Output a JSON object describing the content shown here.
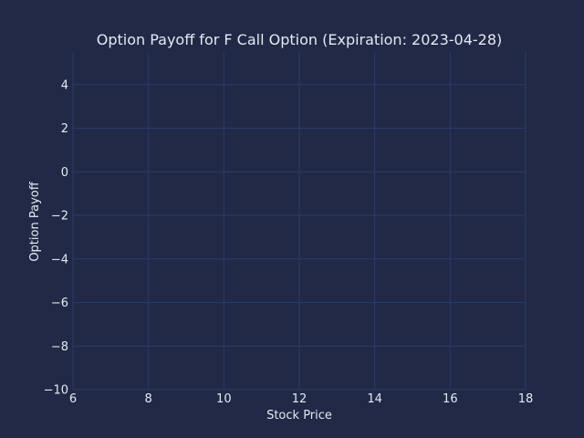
{
  "chart_data": {
    "type": "line",
    "title": "Option Payoff for F Call Option (Expiration: 2023-04-28)",
    "xlabel": "Stock Price",
    "ylabel": "Option Payoff",
    "xlim": [
      6,
      18
    ],
    "ylim": [
      -10,
      5.5
    ],
    "xticks": [
      6,
      8,
      10,
      12,
      14,
      16,
      18
    ],
    "yticks": [
      -10,
      -8,
      -6,
      -4,
      -2,
      0,
      2,
      4
    ],
    "xtick_labels": [
      "6",
      "8",
      "10",
      "12",
      "14",
      "16",
      "18"
    ],
    "ytick_labels": [
      "−10",
      "−8",
      "−6",
      "−4",
      "−2",
      "0",
      "2",
      "4"
    ],
    "series": [],
    "grid": true,
    "colors": {
      "background": "#212946",
      "grid": "#2a3a68",
      "text": "#e6e9f0"
    }
  }
}
